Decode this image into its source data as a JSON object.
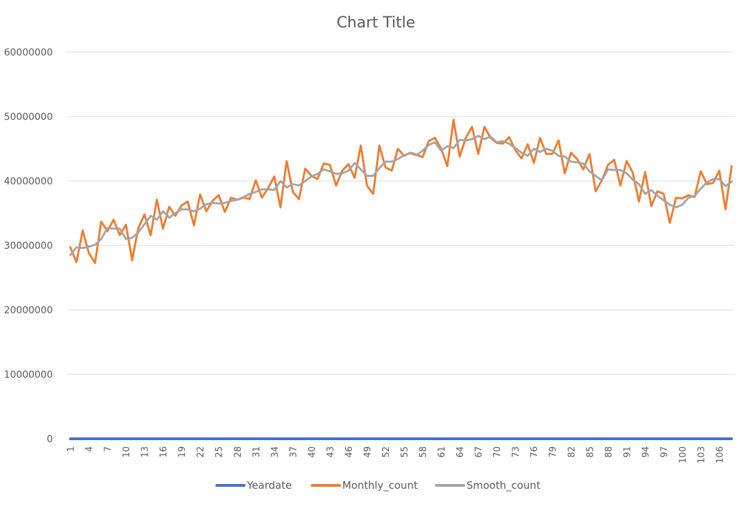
{
  "chart_data": {
    "type": "line",
    "title": "Chart Title",
    "xlabel": "",
    "ylabel": "",
    "ylim": [
      0,
      60000000
    ],
    "yticks": [
      0,
      10000000,
      20000000,
      30000000,
      40000000,
      50000000,
      60000000
    ],
    "ytick_labels": [
      "0",
      "10000000",
      "20000000",
      "30000000",
      "40000000",
      "50000000",
      "60000000"
    ],
    "x": [
      1,
      2,
      3,
      4,
      5,
      6,
      7,
      8,
      9,
      10,
      11,
      12,
      13,
      14,
      15,
      16,
      17,
      18,
      19,
      20,
      21,
      22,
      23,
      24,
      25,
      26,
      27,
      28,
      29,
      30,
      31,
      32,
      33,
      34,
      35,
      36,
      37,
      38,
      39,
      40,
      41,
      42,
      43,
      44,
      45,
      46,
      47,
      48,
      49,
      50,
      51,
      52,
      53,
      54,
      55,
      56,
      57,
      58,
      59,
      60,
      61,
      62,
      63,
      64,
      65,
      66,
      67,
      68,
      69,
      70,
      71,
      72,
      73,
      74,
      75,
      76,
      77,
      78,
      79,
      80,
      81,
      82,
      83,
      84,
      85,
      86,
      87,
      88,
      89,
      90,
      91,
      92,
      93,
      94,
      95,
      96,
      97,
      98,
      99,
      100,
      101,
      102,
      103,
      104,
      105,
      106,
      107,
      108
    ],
    "xtick_labels": [
      "1",
      "4",
      "7",
      "10",
      "13",
      "16",
      "19",
      "22",
      "25",
      "28",
      "31",
      "34",
      "37",
      "40",
      "43",
      "46",
      "49",
      "52",
      "55",
      "58",
      "61",
      "64",
      "67",
      "70",
      "73",
      "76",
      "79",
      "82",
      "85",
      "88",
      "91",
      "94",
      "97",
      "100",
      "103",
      "106"
    ],
    "grid": true,
    "legend_position": "bottom",
    "series": [
      {
        "name": "Yeardate",
        "color": "#4472c4",
        "values": [
          0,
          0,
          0,
          0,
          0,
          0,
          0,
          0,
          0,
          0,
          0,
          0,
          0,
          0,
          0,
          0,
          0,
          0,
          0,
          0,
          0,
          0,
          0,
          0,
          0,
          0,
          0,
          0,
          0,
          0,
          0,
          0,
          0,
          0,
          0,
          0,
          0,
          0,
          0,
          0,
          0,
          0,
          0,
          0,
          0,
          0,
          0,
          0,
          0,
          0,
          0,
          0,
          0,
          0,
          0,
          0,
          0,
          0,
          0,
          0,
          0,
          0,
          0,
          0,
          0,
          0,
          0,
          0,
          0,
          0,
          0,
          0,
          0,
          0,
          0,
          0,
          0,
          0,
          0,
          0,
          0,
          0,
          0,
          0,
          0,
          0,
          0,
          0,
          0,
          0,
          0,
          0,
          0,
          0,
          0,
          0,
          0,
          0,
          0,
          0,
          0,
          0,
          0,
          0,
          0,
          0,
          0,
          0
        ]
      },
      {
        "name": "Monthly_count",
        "color": "#ed7d31",
        "values": [
          29700000,
          27400000,
          32300000,
          28800000,
          27300000,
          33700000,
          32200000,
          34000000,
          31600000,
          33200000,
          27700000,
          32700000,
          34800000,
          31600000,
          37100000,
          32600000,
          36000000,
          34600000,
          36200000,
          36800000,
          33100000,
          37900000,
          35300000,
          36900000,
          37800000,
          35200000,
          37400000,
          37100000,
          37400000,
          37200000,
          40100000,
          37400000,
          38900000,
          40700000,
          35900000,
          43100000,
          38300000,
          37200000,
          41900000,
          40800000,
          40300000,
          42700000,
          42500000,
          39300000,
          41600000,
          42600000,
          40500000,
          45500000,
          39300000,
          38000000,
          45500000,
          42100000,
          41600000,
          45000000,
          43900000,
          44400000,
          44100000,
          43700000,
          46200000,
          46700000,
          45000000,
          42300000,
          49500000,
          43800000,
          46700000,
          48400000,
          44200000,
          48400000,
          46700000,
          45900000,
          45800000,
          46800000,
          44800000,
          43500000,
          45700000,
          42800000,
          46700000,
          44200000,
          44200000,
          46300000,
          41200000,
          44400000,
          43400000,
          41800000,
          44200000,
          38400000,
          40100000,
          42500000,
          43300000,
          39300000,
          43100000,
          41300000,
          36800000,
          41400000,
          36100000,
          38400000,
          38000000,
          33500000,
          37400000,
          37300000,
          37800000,
          37500000,
          41500000,
          39500000,
          39700000,
          41600000,
          35600000,
          42300000
        ]
      },
      {
        "name": "Smooth_count",
        "color": "#a5a5a5",
        "values": [
          28500000,
          29700000,
          29600000,
          29800000,
          30100000,
          31000000,
          32700000,
          32600000,
          32600000,
          31000000,
          31200000,
          32000000,
          33300000,
          34600000,
          34000000,
          35300000,
          34300000,
          35000000,
          35600000,
          35600000,
          35300000,
          35700000,
          36400000,
          36600000,
          36500000,
          36600000,
          36900000,
          37100000,
          37500000,
          38000000,
          38300000,
          38700000,
          38700000,
          38600000,
          40000000,
          39000000,
          39500000,
          39300000,
          40000000,
          40700000,
          41100000,
          41800000,
          41500000,
          41100000,
          41200000,
          41600000,
          42800000,
          41800000,
          40800000,
          40800000,
          42000000,
          43000000,
          43000000,
          43400000,
          44000000,
          44300000,
          44000000,
          44700000,
          45600000,
          46000000,
          44700000,
          45400000,
          45100000,
          46400000,
          46300000,
          46500000,
          47000000,
          46500000,
          46900000,
          46000000,
          46200000,
          45800000,
          45100000,
          44400000,
          43900000,
          45000000,
          44500000,
          45000000,
          44700000,
          43900000,
          43800000,
          43000000,
          42900000,
          42700000,
          41500000,
          40800000,
          40100000,
          41800000,
          41700000,
          41700000,
          41200000,
          40200000,
          39500000,
          38000000,
          38600000,
          37700000,
          37000000,
          36300000,
          35900000,
          36300000,
          37400000,
          37700000,
          38800000,
          39800000,
          40300000,
          40300000,
          39200000,
          39900000
        ]
      }
    ]
  }
}
